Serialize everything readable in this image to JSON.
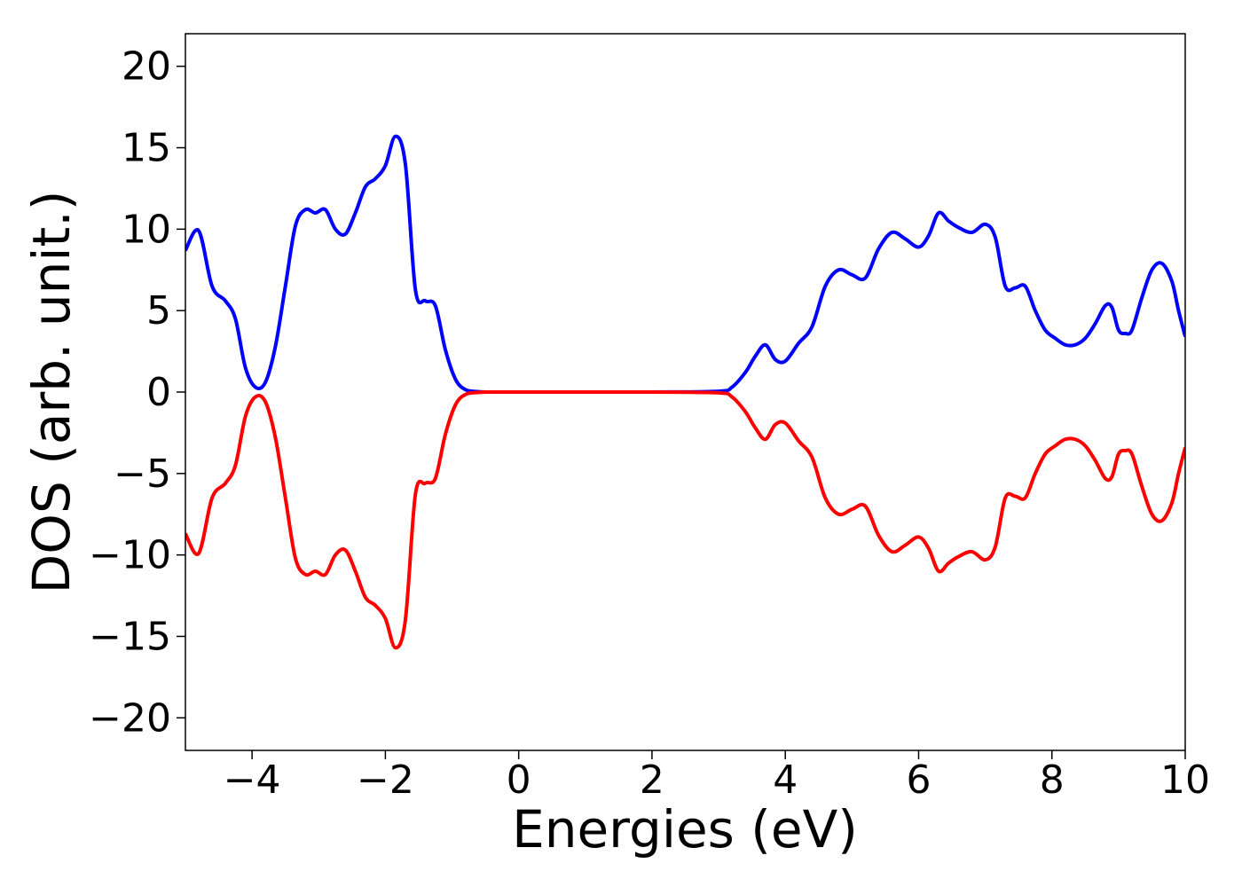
{
  "chart_data": {
    "type": "line",
    "title": "",
    "xlabel": "Energies (eV)",
    "ylabel": "DOS (arb. unit.)",
    "xlim": [
      -5,
      10
    ],
    "ylim": [
      -22,
      22
    ],
    "grid": false,
    "xticks": [
      -4,
      -2,
      0,
      2,
      4,
      6,
      8,
      10
    ],
    "xtick_labels": [
      "−4",
      "−2",
      "0",
      "2",
      "4",
      "6",
      "8",
      "10"
    ],
    "yticks": [
      20,
      15,
      10,
      5,
      0,
      -5,
      -10,
      -15,
      -20
    ],
    "ytick_labels": [
      "20",
      "15",
      "10",
      "5",
      "0",
      "−5",
      "−10",
      "−15",
      "−20"
    ],
    "series": [
      {
        "color": "#0000ff",
        "x": [
          -5.0,
          -4.8,
          -4.6,
          -4.4,
          -4.25,
          -4.1,
          -3.95,
          -3.8,
          -3.65,
          -3.5,
          -3.35,
          -3.2,
          -3.05,
          -2.9,
          -2.75,
          -2.6,
          -2.45,
          -2.3,
          -2.15,
          -2.0,
          -1.85,
          -1.7,
          -1.55,
          -1.4,
          -1.25,
          -1.1,
          -0.95,
          -0.8,
          -0.6,
          -0.4,
          0.0,
          1.0,
          2.0,
          3.0,
          3.2,
          3.4,
          3.55,
          3.7,
          3.85,
          4.0,
          4.2,
          4.4,
          4.6,
          4.8,
          5.0,
          5.2,
          5.4,
          5.6,
          5.8,
          6.0,
          6.15,
          6.3,
          6.45,
          6.6,
          6.8,
          7.0,
          7.15,
          7.3,
          7.45,
          7.6,
          7.75,
          7.9,
          8.05,
          8.2,
          8.35,
          8.5,
          8.65,
          8.8,
          8.9,
          9.0,
          9.1,
          9.2,
          9.35,
          9.5,
          9.65,
          9.8,
          9.9,
          10.0
        ],
        "y": [
          8.7,
          9.9,
          6.5,
          5.6,
          4.5,
          1.5,
          0.3,
          0.6,
          2.8,
          6.5,
          10.2,
          11.2,
          11.0,
          11.2,
          10.0,
          9.7,
          11.0,
          12.6,
          13.1,
          13.9,
          15.7,
          14.0,
          6.3,
          5.6,
          5.3,
          2.6,
          0.8,
          0.15,
          0.02,
          0.0,
          0.0,
          0.0,
          0.0,
          0.05,
          0.3,
          1.2,
          2.2,
          2.9,
          2.0,
          1.9,
          3.0,
          4.0,
          6.5,
          7.5,
          7.2,
          7.0,
          8.8,
          9.8,
          9.4,
          8.9,
          9.6,
          11.0,
          10.5,
          10.1,
          9.8,
          10.3,
          9.5,
          6.5,
          6.4,
          6.5,
          5.0,
          3.8,
          3.3,
          2.9,
          2.9,
          3.3,
          4.2,
          5.3,
          5.2,
          3.8,
          3.6,
          3.8,
          5.8,
          7.5,
          7.9,
          6.8,
          5.0,
          3.4
        ]
      },
      {
        "color": "#ff0000",
        "x": [
          -5.0,
          -4.8,
          -4.6,
          -4.4,
          -4.25,
          -4.1,
          -3.95,
          -3.8,
          -3.65,
          -3.5,
          -3.35,
          -3.2,
          -3.05,
          -2.9,
          -2.75,
          -2.6,
          -2.45,
          -2.3,
          -2.15,
          -2.0,
          -1.85,
          -1.7,
          -1.55,
          -1.4,
          -1.25,
          -1.1,
          -0.95,
          -0.8,
          -0.6,
          -0.4,
          0.0,
          1.0,
          2.0,
          3.0,
          3.2,
          3.4,
          3.55,
          3.7,
          3.85,
          4.0,
          4.2,
          4.4,
          4.6,
          4.8,
          5.0,
          5.2,
          5.4,
          5.6,
          5.8,
          6.0,
          6.15,
          6.3,
          6.45,
          6.6,
          6.8,
          7.0,
          7.15,
          7.3,
          7.45,
          7.6,
          7.75,
          7.9,
          8.05,
          8.2,
          8.35,
          8.5,
          8.65,
          8.8,
          8.9,
          9.0,
          9.1,
          9.2,
          9.35,
          9.5,
          9.65,
          9.8,
          9.9,
          10.0
        ],
        "y": [
          -8.7,
          -9.9,
          -6.5,
          -5.6,
          -4.5,
          -1.5,
          -0.3,
          -0.6,
          -2.8,
          -6.5,
          -10.2,
          -11.2,
          -11.0,
          -11.2,
          -10.0,
          -9.7,
          -11.0,
          -12.6,
          -13.1,
          -13.9,
          -15.7,
          -14.0,
          -6.3,
          -5.6,
          -5.3,
          -2.6,
          -0.8,
          -0.15,
          -0.02,
          0.0,
          0.0,
          0.0,
          0.0,
          -0.05,
          -0.3,
          -1.2,
          -2.2,
          -2.9,
          -2.0,
          -1.9,
          -3.0,
          -4.0,
          -6.5,
          -7.5,
          -7.2,
          -7.0,
          -8.8,
          -9.8,
          -9.4,
          -8.9,
          -9.6,
          -11.0,
          -10.5,
          -10.1,
          -9.8,
          -10.3,
          -9.5,
          -6.5,
          -6.4,
          -6.5,
          -5.0,
          -3.8,
          -3.3,
          -2.9,
          -2.9,
          -3.3,
          -4.2,
          -5.3,
          -5.2,
          -3.8,
          -3.6,
          -3.8,
          -5.8,
          -7.5,
          -7.9,
          -6.8,
          -5.0,
          -3.4
        ]
      }
    ]
  }
}
